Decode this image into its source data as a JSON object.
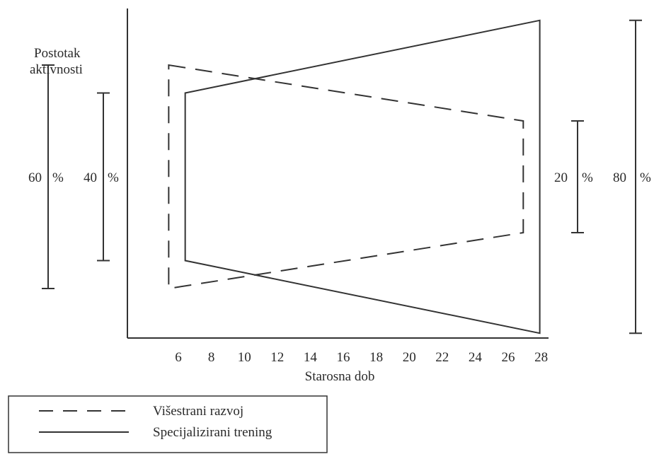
{
  "chart_data": {
    "type": "line",
    "title": "",
    "xlabel": "Starosna dob",
    "ylabel": [
      "Postotak",
      "aktivnosti"
    ],
    "x_ticks": [
      6,
      8,
      10,
      12,
      14,
      16,
      18,
      20,
      22,
      24,
      26,
      28
    ],
    "xlim": [
      6,
      28
    ],
    "ylim": [
      0,
      100
    ],
    "grid": false,
    "legend_position": "bottom-left",
    "series": [
      {
        "name": "Višestrani razvoj",
        "style": "dashed",
        "x": [
          5.5,
          27
        ],
        "upper": [
          70,
          60
        ],
        "lower": [
          30,
          40
        ]
      },
      {
        "name": "Specijalizirani trening",
        "style": "solid",
        "x": [
          6.5,
          28
        ],
        "upper": [
          65,
          78
        ],
        "lower": [
          35,
          22
        ]
      }
    ],
    "spread_brackets": [
      {
        "label": "60",
        "unit": "%",
        "low": 30,
        "high": 70,
        "position": "left-outer"
      },
      {
        "label": "40",
        "unit": "%",
        "low": 35,
        "high": 65,
        "position": "left-inner"
      },
      {
        "label": "20",
        "unit": "%",
        "low": 40,
        "high": 60,
        "position": "right-inner"
      },
      {
        "label": "80",
        "unit": "%",
        "low": 22,
        "high": 78,
        "position": "right-outer"
      }
    ],
    "color": "#333333"
  }
}
